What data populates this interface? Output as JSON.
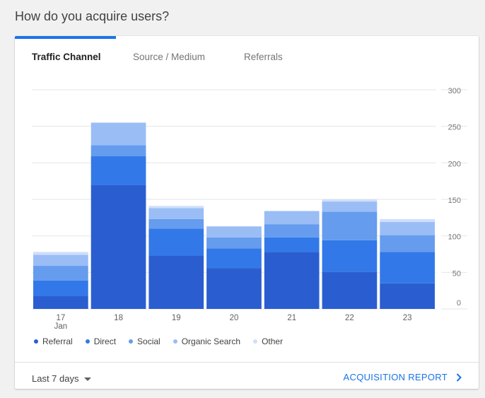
{
  "page": {
    "title": "How do you acquire users?"
  },
  "tabs": [
    {
      "label": "Traffic Channel",
      "active": true
    },
    {
      "label": "Source / Medium",
      "active": false
    },
    {
      "label": "Referrals",
      "active": false
    }
  ],
  "footer": {
    "range_label": "Last 7 days",
    "report_label": "ACQUISITION REPORT"
  },
  "colors": {
    "accent": "#1a73e8",
    "series": [
      "#2a5ed0",
      "#3278e8",
      "#659cee",
      "#9abdf6",
      "#cfdefb"
    ]
  },
  "chart_data": {
    "type": "bar",
    "stacked": true,
    "categories": [
      "17",
      "18",
      "19",
      "20",
      "21",
      "22",
      "23"
    ],
    "category_sublabels": [
      "Jan",
      "",
      "",
      "",
      "",
      "",
      ""
    ],
    "y_ticks": [
      0,
      50,
      100,
      150,
      200,
      250,
      300
    ],
    "ylim": [
      0,
      300
    ],
    "grid": true,
    "legend": "bottom-left",
    "series": [
      {
        "name": "Referral",
        "values": [
          18,
          170,
          73,
          56,
          78,
          51,
          35
        ]
      },
      {
        "name": "Direct",
        "values": [
          21,
          39,
          37,
          27,
          20,
          43,
          43
        ]
      },
      {
        "name": "Social",
        "values": [
          20,
          15,
          13,
          15,
          18,
          39,
          23
        ]
      },
      {
        "name": "Organic Search",
        "values": [
          15,
          31,
          15,
          15,
          18,
          14,
          18
        ]
      },
      {
        "name": "Other",
        "values": [
          4,
          0,
          3,
          0,
          0,
          3,
          4
        ]
      }
    ]
  }
}
